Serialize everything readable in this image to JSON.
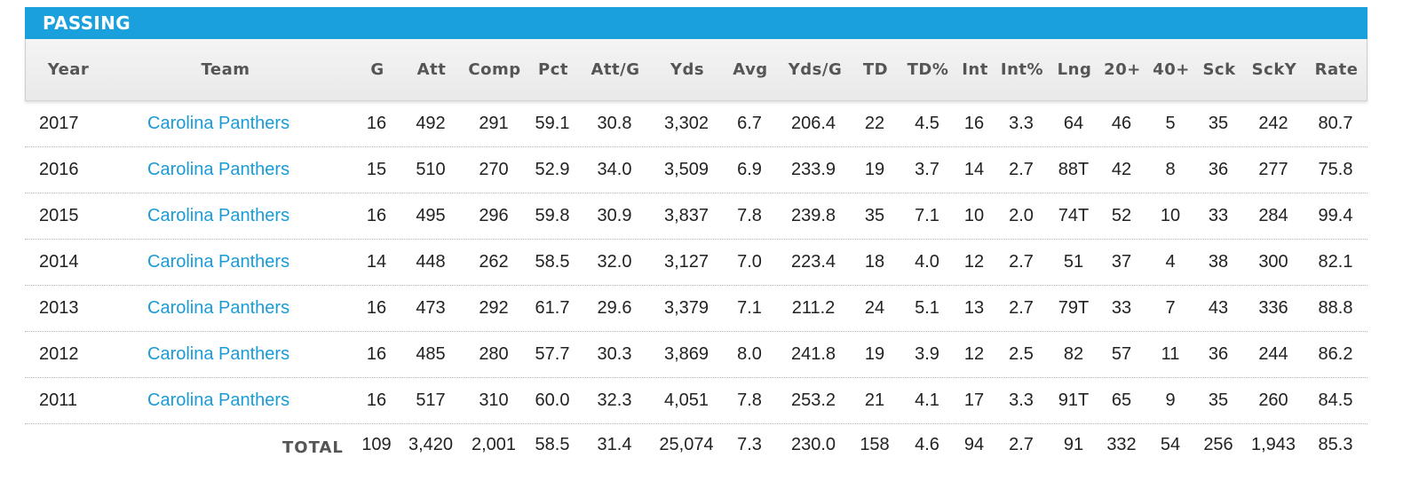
{
  "section_title": "PASSING",
  "columns": [
    "Year",
    "Team",
    "G",
    "Att",
    "Comp",
    "Pct",
    "Att/G",
    "Yds",
    "Avg",
    "Yds/G",
    "TD",
    "TD%",
    "Int",
    "Int%",
    "Lng",
    "20+",
    "40+",
    "Sck",
    "SckY",
    "Rate"
  ],
  "rows": [
    {
      "year": "2017",
      "team": "Carolina Panthers",
      "stats": [
        "16",
        "492",
        "291",
        "59.1",
        "30.8",
        "3,302",
        "6.7",
        "206.4",
        "22",
        "4.5",
        "16",
        "3.3",
        "64",
        "46",
        "5",
        "35",
        "242",
        "80.7"
      ]
    },
    {
      "year": "2016",
      "team": "Carolina Panthers",
      "stats": [
        "15",
        "510",
        "270",
        "52.9",
        "34.0",
        "3,509",
        "6.9",
        "233.9",
        "19",
        "3.7",
        "14",
        "2.7",
        "88T",
        "42",
        "8",
        "36",
        "277",
        "75.8"
      ]
    },
    {
      "year": "2015",
      "team": "Carolina Panthers",
      "stats": [
        "16",
        "495",
        "296",
        "59.8",
        "30.9",
        "3,837",
        "7.8",
        "239.8",
        "35",
        "7.1",
        "10",
        "2.0",
        "74T",
        "52",
        "10",
        "33",
        "284",
        "99.4"
      ]
    },
    {
      "year": "2014",
      "team": "Carolina Panthers",
      "stats": [
        "14",
        "448",
        "262",
        "58.5",
        "32.0",
        "3,127",
        "7.0",
        "223.4",
        "18",
        "4.0",
        "12",
        "2.7",
        "51",
        "37",
        "4",
        "38",
        "300",
        "82.1"
      ]
    },
    {
      "year": "2013",
      "team": "Carolina Panthers",
      "stats": [
        "16",
        "473",
        "292",
        "61.7",
        "29.6",
        "3,379",
        "7.1",
        "211.2",
        "24",
        "5.1",
        "13",
        "2.7",
        "79T",
        "33",
        "7",
        "43",
        "336",
        "88.8"
      ]
    },
    {
      "year": "2012",
      "team": "Carolina Panthers",
      "stats": [
        "16",
        "485",
        "280",
        "57.7",
        "30.3",
        "3,869",
        "8.0",
        "241.8",
        "19",
        "3.9",
        "12",
        "2.5",
        "82",
        "57",
        "11",
        "36",
        "244",
        "86.2"
      ]
    },
    {
      "year": "2011",
      "team": "Carolina Panthers",
      "stats": [
        "16",
        "517",
        "310",
        "60.0",
        "32.3",
        "4,051",
        "7.8",
        "253.2",
        "21",
        "4.1",
        "17",
        "3.3",
        "91T",
        "65",
        "9",
        "35",
        "260",
        "84.5"
      ]
    }
  ],
  "total": {
    "label": "TOTAL",
    "stats": [
      "109",
      "3,420",
      "2,001",
      "58.5",
      "31.4",
      "25,074",
      "7.3",
      "230.0",
      "158",
      "4.6",
      "94",
      "2.7",
      "91",
      "332",
      "54",
      "256",
      "1,943",
      "85.3"
    ]
  },
  "colors": {
    "header_bar": "#1aa0dc",
    "team_link": "#1a9bd6"
  }
}
